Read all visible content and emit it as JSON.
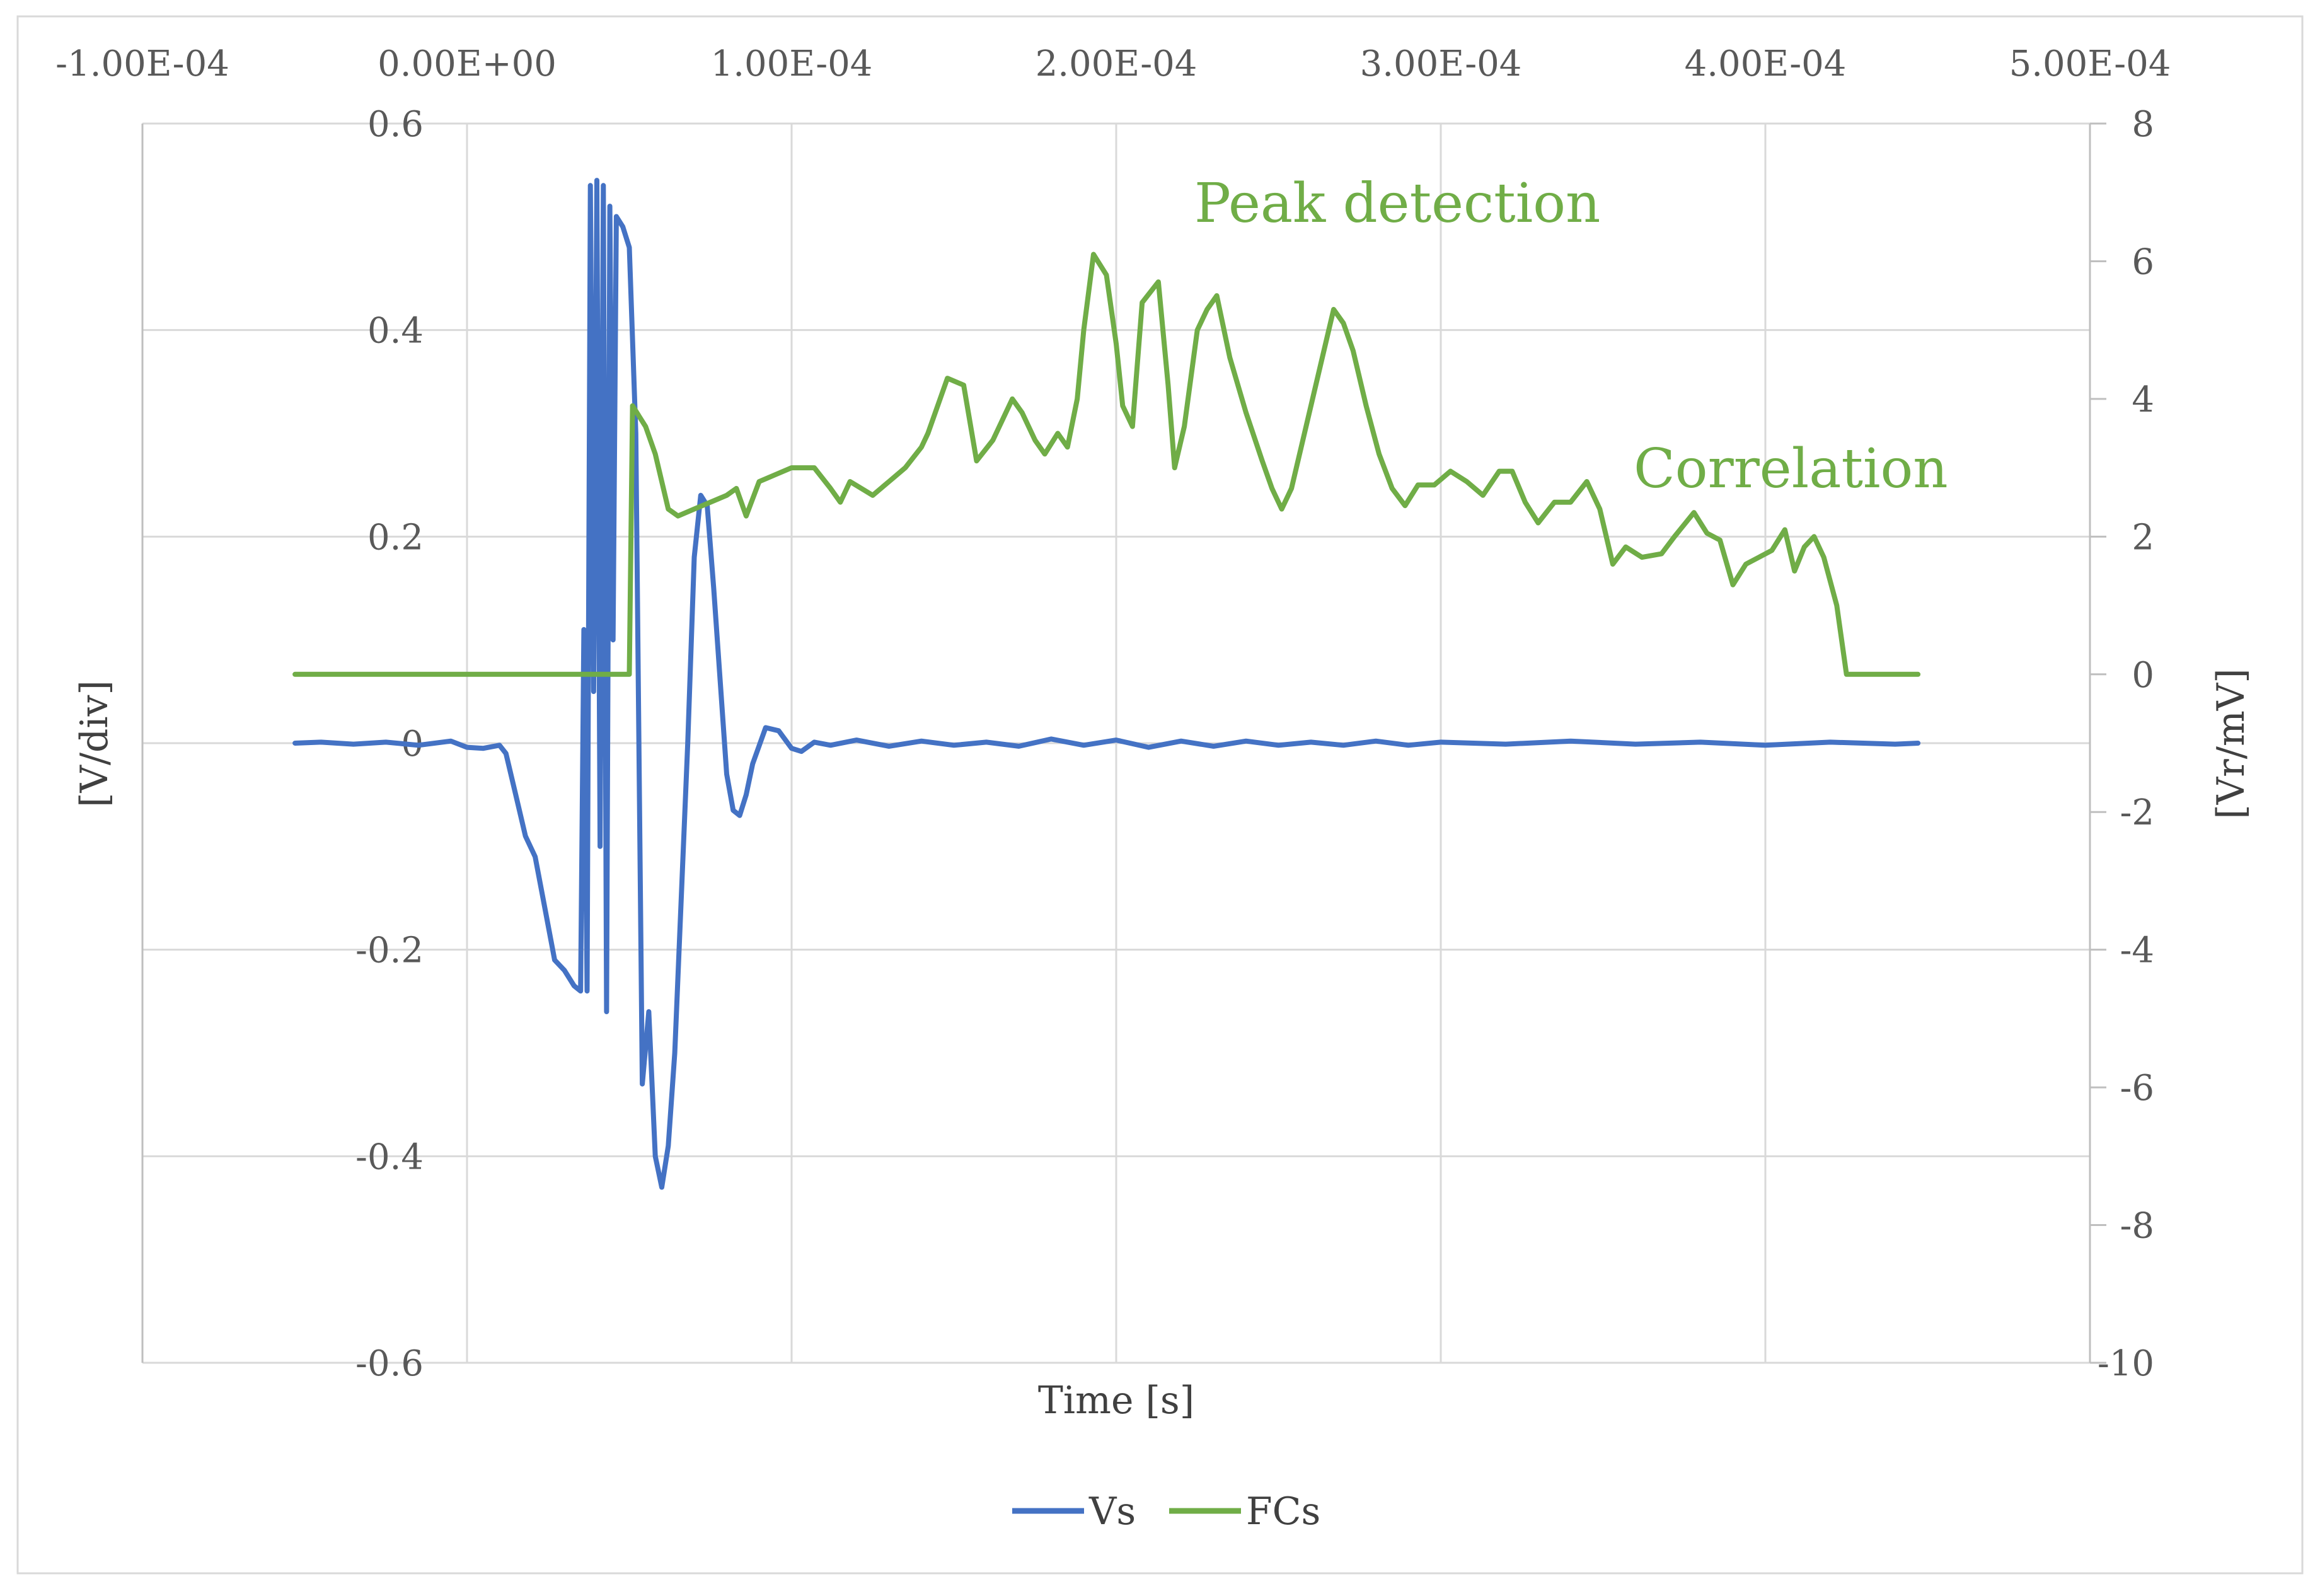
{
  "chart_data": {
    "type": "line",
    "xlabel": "Time [s]",
    "ylabel_left": "[V/div]",
    "ylabel_right": "[Vr/mV]",
    "x_axis": {
      "range": [
        -0.0001,
        0.0005
      ],
      "ticks": [
        -0.0001,
        0.0,
        0.0001,
        0.0002,
        0.0003,
        0.0004,
        0.0005
      ],
      "tick_labels": [
        "-1.00E-04",
        "0.00E+00",
        "1.00E-04",
        "2.00E-04",
        "3.00E-04",
        "4.00E-04",
        "5.00E-04"
      ],
      "position": "top"
    },
    "y_left": {
      "range": [
        -0.6,
        0.6
      ],
      "ticks": [
        -0.6,
        -0.4,
        -0.2,
        0,
        0.2,
        0.4,
        0.6
      ],
      "tick_labels": [
        "-0.6",
        "-0.4",
        "-0.2",
        "0",
        "0.2",
        "0.4",
        "0.6"
      ]
    },
    "y_right": {
      "range": [
        -10,
        8
      ],
      "ticks": [
        -10,
        -8,
        -6,
        -4,
        -2,
        0,
        2,
        4,
        6,
        8
      ],
      "tick_labels": [
        "-10",
        "-8",
        "-6",
        "-4",
        "-2",
        "0",
        "2",
        "4",
        "6",
        "8"
      ]
    },
    "grid": true,
    "legend_position": "bottom",
    "annotations": [
      "Peak detection",
      "Correlation"
    ],
    "annotation_color": "#70ad47",
    "series": [
      {
        "name": "Vs",
        "axis": "left",
        "color": "#4472c4",
        "points": [
          [
            -5.3e-05,
            0
          ],
          [
            -4.5e-05,
            0.001
          ],
          [
            -3.5e-05,
            -0.001
          ],
          [
            -2.5e-05,
            0.001
          ],
          [
            -1.5e-05,
            -0.002
          ],
          [
            -5e-06,
            0.002
          ],
          [
            0,
            -0.004
          ],
          [
            5e-06,
            -0.005
          ],
          [
            1e-05,
            -0.002
          ],
          [
            1.2e-05,
            -0.01
          ],
          [
            1.5e-05,
            -0.05
          ],
          [
            1.8e-05,
            -0.09
          ],
          [
            2.1e-05,
            -0.11
          ],
          [
            2.4e-05,
            -0.16
          ],
          [
            2.7e-05,
            -0.21
          ],
          [
            3e-05,
            -0.22
          ],
          [
            3.3e-05,
            -0.235
          ],
          [
            3.5e-05,
            -0.24
          ],
          [
            3.6e-05,
            0.11
          ],
          [
            3.7e-05,
            -0.24
          ],
          [
            3.8e-05,
            0.54
          ],
          [
            3.9e-05,
            0.05
          ],
          [
            4e-05,
            0.545
          ],
          [
            4.1e-05,
            -0.1
          ],
          [
            4.2e-05,
            0.54
          ],
          [
            4.3e-05,
            -0.26
          ],
          [
            4.4e-05,
            0.52
          ],
          [
            4.5e-05,
            0.1
          ],
          [
            4.6e-05,
            0.51
          ],
          [
            4.8e-05,
            0.5
          ],
          [
            5e-05,
            0.48
          ],
          [
            5.2e-05,
            0.3
          ],
          [
            5.4e-05,
            -0.33
          ],
          [
            5.6e-05,
            -0.26
          ],
          [
            5.8e-05,
            -0.4
          ],
          [
            6e-05,
            -0.43
          ],
          [
            6.2e-05,
            -0.39
          ],
          [
            6.4e-05,
            -0.3
          ],
          [
            6.6e-05,
            -0.15
          ],
          [
            6.8e-05,
            0.0
          ],
          [
            7e-05,
            0.18
          ],
          [
            7.2e-05,
            0.24
          ],
          [
            7.4e-05,
            0.23
          ],
          [
            7.6e-05,
            0.15
          ],
          [
            7.8e-05,
            0.06
          ],
          [
            8e-05,
            -0.03
          ],
          [
            8.2e-05,
            -0.065
          ],
          [
            8.4e-05,
            -0.07
          ],
          [
            8.6e-05,
            -0.05
          ],
          [
            8.8e-05,
            -0.02
          ],
          [
            9.2e-05,
            0.015
          ],
          [
            9.6e-05,
            0.012
          ],
          [
            0.0001,
            -0.005
          ],
          [
            0.000103,
            -0.008
          ],
          [
            0.000107,
            0.001
          ],
          [
            0.000112,
            -0.002
          ],
          [
            0.00012,
            0.003
          ],
          [
            0.00013,
            -0.003
          ],
          [
            0.00014,
            0.002
          ],
          [
            0.00015,
            -0.002
          ],
          [
            0.00016,
            0.001
          ],
          [
            0.00017,
            -0.003
          ],
          [
            0.00018,
            0.004
          ],
          [
            0.00019,
            -0.002
          ],
          [
            0.0002,
            0.003
          ],
          [
            0.00021,
            -0.004
          ],
          [
            0.00022,
            0.002
          ],
          [
            0.00023,
            -0.003
          ],
          [
            0.00024,
            0.002
          ],
          [
            0.00025,
            -0.002
          ],
          [
            0.00026,
            0.001
          ],
          [
            0.00027,
            -0.002
          ],
          [
            0.00028,
            0.002
          ],
          [
            0.00029,
            -0.002
          ],
          [
            0.0003,
            0.001
          ],
          [
            0.00032,
            -0.001
          ],
          [
            0.00034,
            0.002
          ],
          [
            0.00036,
            -0.001
          ],
          [
            0.00038,
            0.001
          ],
          [
            0.0004,
            -0.002
          ],
          [
            0.00042,
            0.001
          ],
          [
            0.00044,
            -0.001
          ],
          [
            0.000447,
            0
          ]
        ]
      },
      {
        "name": "FCs",
        "axis": "right",
        "color": "#70ad47",
        "points": [
          [
            -5.3e-05,
            0
          ],
          [
            5e-05,
            0
          ],
          [
            5.1e-05,
            3.9
          ],
          [
            5.5e-05,
            3.6
          ],
          [
            5.8e-05,
            3.2
          ],
          [
            6.2e-05,
            2.4
          ],
          [
            6.5e-05,
            2.3
          ],
          [
            7e-05,
            2.4
          ],
          [
            7.5e-05,
            2.5
          ],
          [
            8e-05,
            2.6
          ],
          [
            8.3e-05,
            2.7
          ],
          [
            8.6e-05,
            2.3
          ],
          [
            9e-05,
            2.8
          ],
          [
            9.5e-05,
            2.9
          ],
          [
            0.0001,
            3.0
          ],
          [
            0.000107,
            3.0
          ],
          [
            0.000112,
            2.7
          ],
          [
            0.000115,
            2.5
          ],
          [
            0.000118,
            2.8
          ],
          [
            0.000125,
            2.6
          ],
          [
            0.00013,
            2.8
          ],
          [
            0.000135,
            3.0
          ],
          [
            0.00014,
            3.3
          ],
          [
            0.000142,
            3.5
          ],
          [
            0.000148,
            4.3
          ],
          [
            0.000153,
            4.2
          ],
          [
            0.000157,
            3.1
          ],
          [
            0.000162,
            3.4
          ],
          [
            0.000168,
            4.0
          ],
          [
            0.000171,
            3.8
          ],
          [
            0.000175,
            3.4
          ],
          [
            0.000178,
            3.2
          ],
          [
            0.000182,
            3.5
          ],
          [
            0.000185,
            3.3
          ],
          [
            0.000188,
            4.0
          ],
          [
            0.00019,
            5.0
          ],
          [
            0.000193,
            6.1
          ],
          [
            0.000197,
            5.8
          ],
          [
            0.0002,
            4.8
          ],
          [
            0.000202,
            3.9
          ],
          [
            0.000205,
            3.6
          ],
          [
            0.000208,
            5.4
          ],
          [
            0.000213,
            5.7
          ],
          [
            0.000216,
            4.2
          ],
          [
            0.000218,
            3.0
          ],
          [
            0.000221,
            3.6
          ],
          [
            0.000225,
            5.0
          ],
          [
            0.000228,
            5.3
          ],
          [
            0.000231,
            5.5
          ],
          [
            0.000235,
            4.6
          ],
          [
            0.00024,
            3.8
          ],
          [
            0.000245,
            3.1
          ],
          [
            0.000248,
            2.7
          ],
          [
            0.000251,
            2.4
          ],
          [
            0.000254,
            2.7
          ],
          [
            0.000258,
            3.5
          ],
          [
            0.000263,
            4.5
          ],
          [
            0.000267,
            5.3
          ],
          [
            0.00027,
            5.1
          ],
          [
            0.000273,
            4.7
          ],
          [
            0.000277,
            3.9
          ],
          [
            0.000281,
            3.2
          ],
          [
            0.000285,
            2.7
          ],
          [
            0.000289,
            2.45
          ],
          [
            0.000293,
            2.75
          ],
          [
            0.000298,
            2.75
          ],
          [
            0.000303,
            2.95
          ],
          [
            0.000308,
            2.8
          ],
          [
            0.000313,
            2.6
          ],
          [
            0.000318,
            2.95
          ],
          [
            0.000322,
            2.95
          ],
          [
            0.000326,
            2.5
          ],
          [
            0.00033,
            2.2
          ],
          [
            0.000335,
            2.5
          ],
          [
            0.00034,
            2.5
          ],
          [
            0.000345,
            2.8
          ],
          [
            0.000349,
            2.4
          ],
          [
            0.000353,
            1.6
          ],
          [
            0.000357,
            1.85
          ],
          [
            0.000362,
            1.7
          ],
          [
            0.000368,
            1.75
          ],
          [
            0.000372,
            2.0
          ],
          [
            0.000378,
            2.35
          ],
          [
            0.000382,
            2.05
          ],
          [
            0.000386,
            1.95
          ],
          [
            0.00039,
            1.3
          ],
          [
            0.000394,
            1.6
          ],
          [
            0.000398,
            1.7
          ],
          [
            0.000402,
            1.8
          ],
          [
            0.000406,
            2.1
          ],
          [
            0.000409,
            1.5
          ],
          [
            0.000412,
            1.85
          ],
          [
            0.000415,
            2.0
          ],
          [
            0.000418,
            1.7
          ],
          [
            0.000422,
            1.0
          ],
          [
            0.000425,
            0
          ],
          [
            0.000447,
            0
          ]
        ]
      }
    ]
  }
}
